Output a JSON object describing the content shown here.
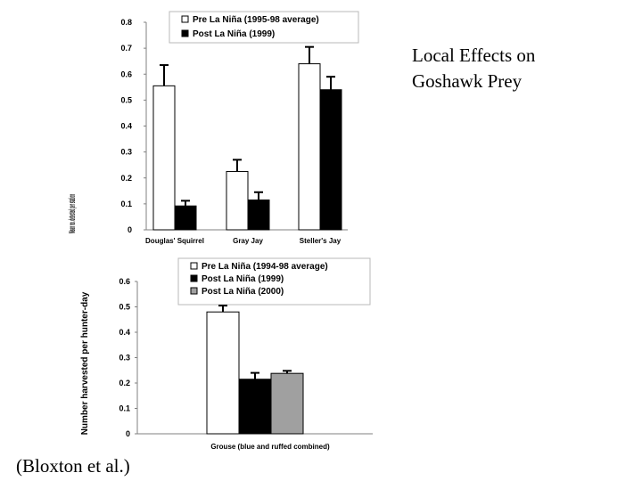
{
  "slide": {
    "title": "Local Effects on Goshawk Prey",
    "citation": "(Bloxton et al.)"
  },
  "chart_data": [
    {
      "type": "bar",
      "title": "",
      "xlabel": "",
      "ylabel": "Mean no. detected per station",
      "ylim": [
        0,
        0.8
      ],
      "yticks": [
        "0",
        "0.1",
        "0.2",
        "0.3",
        "0.4",
        "0.5",
        "0.6",
        "0.7",
        "0.8"
      ],
      "categories": [
        "Douglas' Squirrel",
        "Gray Jay",
        "Steller's Jay"
      ],
      "series": [
        {
          "name": "Pre La Niña (1995-98 average)",
          "color": "#ffffff",
          "values": [
            0.555,
            0.225,
            0.64
          ],
          "errors": [
            0.08,
            0.045,
            0.065
          ]
        },
        {
          "name": "Post La Niña (1999)",
          "color": "#000000",
          "values": [
            0.092,
            0.115,
            0.54
          ],
          "errors": [
            0.02,
            0.03,
            0.05
          ]
        }
      ],
      "legend": "top"
    },
    {
      "type": "bar",
      "title": "",
      "xlabel": "",
      "ylabel": "Number harvested per hunter-day",
      "ylim": [
        0,
        0.6
      ],
      "yticks": [
        "0",
        "0.1",
        "0.2",
        "0.3",
        "0.4",
        "0.5",
        "0.6"
      ],
      "categories": [
        "Grouse (blue and ruffed combined)"
      ],
      "series": [
        {
          "name": "Pre La Niña (1994-98 average)",
          "color": "#ffffff",
          "values": [
            0.48
          ],
          "errors": [
            0.025
          ]
        },
        {
          "name": "Post La Niña (1999)",
          "color": "#000000",
          "values": [
            0.215
          ],
          "errors": [
            0.025
          ]
        },
        {
          "name": "Post La Niña (2000)",
          "color": "#a0a0a0",
          "values": [
            0.238
          ],
          "errors": [
            0.01
          ]
        }
      ],
      "legend": "top"
    }
  ]
}
